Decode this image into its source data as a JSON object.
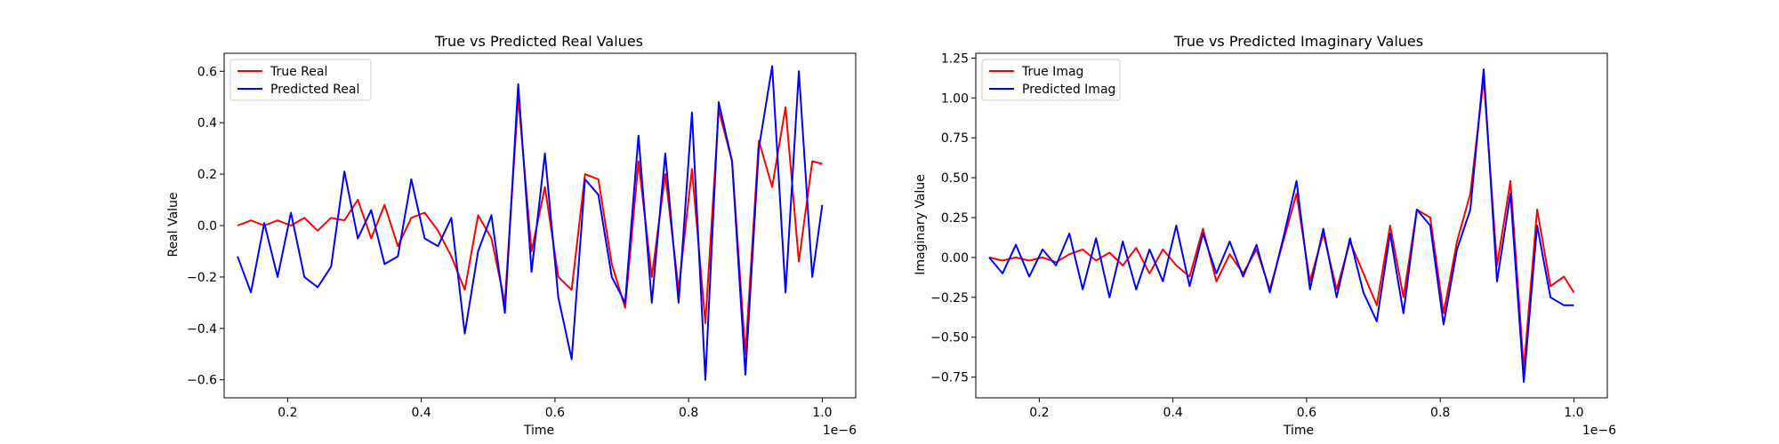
{
  "chart_data": [
    {
      "type": "line",
      "title": "True vs Predicted Real Values",
      "xlabel": "Time",
      "ylabel": "Real Value",
      "x_offset_label": "1e−6",
      "xlim": [
        0.105,
        1.05
      ],
      "ylim": [
        -0.67,
        0.67
      ],
      "xticks": [
        0.2,
        0.4,
        0.6,
        0.8,
        1.0
      ],
      "xtick_labels": [
        "0.2",
        "0.4",
        "0.6",
        "0.8",
        "1.0"
      ],
      "yticks": [
        -0.6,
        -0.4,
        -0.2,
        0.0,
        0.2,
        0.4,
        0.6
      ],
      "ytick_labels": [
        "−0.6",
        "−0.4",
        "−0.2",
        "0.0",
        "0.2",
        "0.4",
        "0.6"
      ],
      "legend_position": "top-left",
      "grid": false,
      "x": [
        0.125,
        0.145,
        0.165,
        0.185,
        0.205,
        0.225,
        0.245,
        0.265,
        0.285,
        0.305,
        0.325,
        0.345,
        0.365,
        0.385,
        0.405,
        0.425,
        0.445,
        0.465,
        0.485,
        0.505,
        0.525,
        0.545,
        0.565,
        0.585,
        0.605,
        0.625,
        0.645,
        0.665,
        0.685,
        0.705,
        0.725,
        0.745,
        0.765,
        0.785,
        0.805,
        0.825,
        0.845,
        0.865,
        0.885,
        0.905,
        0.925,
        0.945,
        0.965,
        0.985,
        1.0
      ],
      "series": [
        {
          "name": "True Real",
          "color": "#ff0000",
          "values": [
            0.0,
            0.02,
            0.0,
            0.02,
            0.0,
            0.03,
            -0.02,
            0.03,
            0.02,
            0.1,
            -0.05,
            0.08,
            -0.08,
            0.03,
            0.05,
            -0.02,
            -0.12,
            -0.25,
            0.04,
            -0.05,
            -0.3,
            0.5,
            -0.1,
            0.15,
            -0.2,
            -0.25,
            0.2,
            0.18,
            -0.15,
            -0.32,
            0.25,
            -0.2,
            0.2,
            -0.25,
            0.22,
            -0.38,
            0.45,
            0.25,
            -0.5,
            0.33,
            0.15,
            0.46,
            -0.14,
            0.25,
            0.24
          ]
        },
        {
          "name": "Predicted Real",
          "color": "#0000ff",
          "values": [
            -0.12,
            -0.26,
            0.01,
            -0.2,
            0.05,
            -0.2,
            -0.24,
            -0.16,
            0.21,
            -0.05,
            0.06,
            -0.15,
            -0.12,
            0.18,
            -0.05,
            -0.08,
            0.03,
            -0.42,
            -0.1,
            0.04,
            -0.34,
            0.55,
            -0.18,
            0.28,
            -0.28,
            -0.52,
            0.18,
            0.12,
            -0.2,
            -0.3,
            0.35,
            -0.3,
            0.28,
            -0.3,
            0.44,
            -0.6,
            0.48,
            0.25,
            -0.58,
            0.3,
            0.62,
            -0.26,
            0.6,
            -0.2,
            0.08
          ]
        }
      ]
    },
    {
      "type": "line",
      "title": "True vs Predicted Imaginary Values",
      "xlabel": "Time",
      "ylabel": "Imaginary Value",
      "x_offset_label": "1e−6",
      "xlim": [
        0.105,
        1.05
      ],
      "ylim": [
        -0.88,
        1.28
      ],
      "xticks": [
        0.2,
        0.4,
        0.6,
        0.8,
        1.0
      ],
      "xtick_labels": [
        "0.2",
        "0.4",
        "0.6",
        "0.8",
        "1.0"
      ],
      "yticks": [
        -0.75,
        -0.5,
        -0.25,
        0.0,
        0.25,
        0.5,
        0.75,
        1.0,
        1.25
      ],
      "ytick_labels": [
        "−0.75",
        "−0.50",
        "−0.25",
        "0.00",
        "0.25",
        "0.50",
        "0.75",
        "1.00",
        "1.25"
      ],
      "legend_position": "top-left",
      "grid": false,
      "x": [
        0.125,
        0.145,
        0.165,
        0.185,
        0.205,
        0.225,
        0.245,
        0.265,
        0.285,
        0.305,
        0.325,
        0.345,
        0.365,
        0.385,
        0.405,
        0.425,
        0.445,
        0.465,
        0.485,
        0.505,
        0.525,
        0.545,
        0.565,
        0.585,
        0.605,
        0.625,
        0.645,
        0.665,
        0.685,
        0.705,
        0.725,
        0.745,
        0.765,
        0.785,
        0.805,
        0.825,
        0.845,
        0.865,
        0.885,
        0.905,
        0.925,
        0.945,
        0.965,
        0.985,
        1.0
      ],
      "series": [
        {
          "name": "True Imag",
          "color": "#ff0000",
          "values": [
            0.0,
            -0.02,
            0.0,
            -0.02,
            0.0,
            -0.03,
            0.02,
            0.05,
            -0.02,
            0.03,
            -0.05,
            0.06,
            -0.1,
            0.05,
            -0.05,
            -0.12,
            0.18,
            -0.15,
            0.02,
            -0.1,
            0.05,
            -0.2,
            0.1,
            0.4,
            -0.15,
            0.15,
            -0.2,
            0.1,
            -0.1,
            -0.3,
            0.2,
            -0.25,
            0.3,
            0.25,
            -0.35,
            0.1,
            0.4,
            1.12,
            -0.05,
            0.48,
            -0.7,
            0.3,
            -0.18,
            -0.12,
            -0.22
          ]
        },
        {
          "name": "Predicted Imag",
          "color": "#0000ff",
          "values": [
            0.0,
            -0.1,
            0.08,
            -0.12,
            0.05,
            -0.05,
            0.15,
            -0.2,
            0.12,
            -0.25,
            0.1,
            -0.2,
            0.05,
            -0.15,
            0.2,
            -0.18,
            0.15,
            -0.1,
            0.1,
            -0.12,
            0.08,
            -0.22,
            0.12,
            0.48,
            -0.2,
            0.18,
            -0.25,
            0.12,
            -0.22,
            -0.4,
            0.15,
            -0.35,
            0.3,
            0.2,
            -0.42,
            0.05,
            0.3,
            1.18,
            -0.15,
            0.4,
            -0.78,
            0.2,
            -0.25,
            -0.3,
            -0.3
          ]
        }
      ]
    }
  ]
}
